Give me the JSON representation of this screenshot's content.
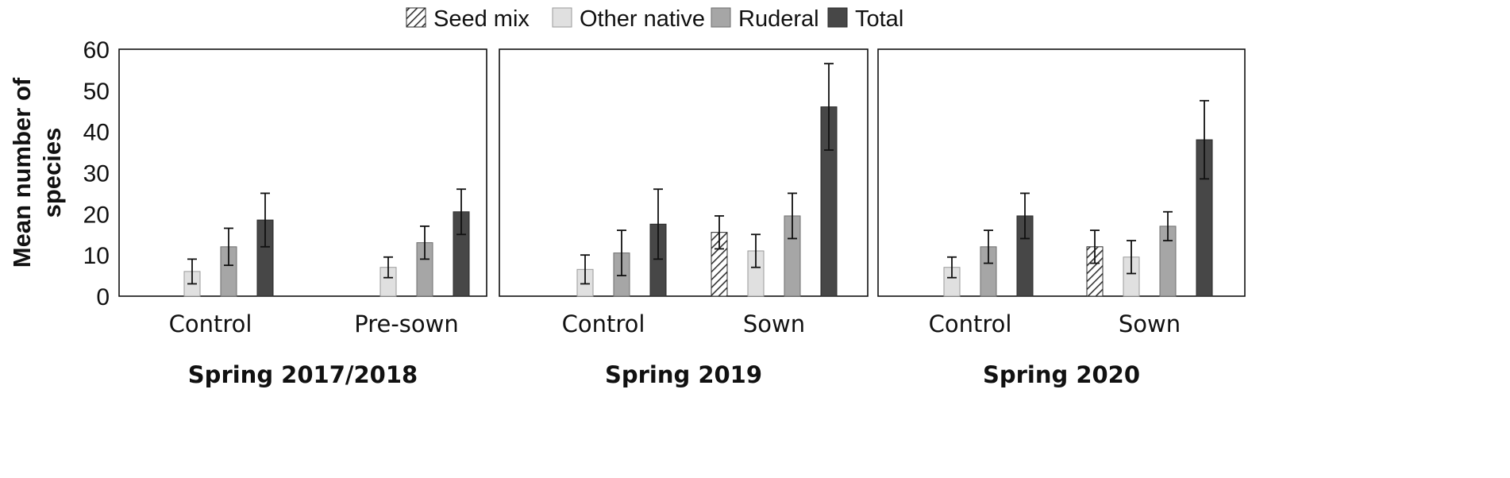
{
  "chart_data": {
    "type": "bar",
    "ylabel": [
      "Mean number of",
      "species"
    ],
    "ylim": [
      0,
      60
    ],
    "yticks": [
      0,
      10,
      20,
      30,
      40,
      50,
      60
    ],
    "legend": {
      "position": "top-center",
      "entries": [
        {
          "key": "seed_mix",
          "label": "Seed mix",
          "color": "#ffffff",
          "pattern": "hatch"
        },
        {
          "key": "other_native",
          "label": "Other native",
          "color": "#e0e0e0"
        },
        {
          "key": "ruderal",
          "label": "Ruderal",
          "color": "#a6a6a6"
        },
        {
          "key": "total",
          "label": "Total",
          "color": "#474747"
        }
      ]
    },
    "panels": [
      {
        "title": "Spring 2017/2018",
        "groups": [
          {
            "category": "Control",
            "bars": [
              {
                "series": "other_native",
                "value": 6,
                "err": 3
              },
              {
                "series": "ruderal",
                "value": 12,
                "err": 4.5
              },
              {
                "series": "total",
                "value": 18.5,
                "err": 6.5
              }
            ]
          },
          {
            "category": "Pre-sown",
            "bars": [
              {
                "series": "other_native",
                "value": 7,
                "err": 2.5
              },
              {
                "series": "ruderal",
                "value": 13,
                "err": 4
              },
              {
                "series": "total",
                "value": 20.5,
                "err": 5.5
              }
            ]
          }
        ]
      },
      {
        "title": "Spring 2019",
        "groups": [
          {
            "category": "Control",
            "bars": [
              {
                "series": "other_native",
                "value": 6.5,
                "err": 3.5
              },
              {
                "series": "ruderal",
                "value": 10.5,
                "err": 5.5
              },
              {
                "series": "total",
                "value": 17.5,
                "err": 8.5
              }
            ]
          },
          {
            "category": "Sown",
            "bars": [
              {
                "series": "seed_mix",
                "value": 15.5,
                "err": 4
              },
              {
                "series": "other_native",
                "value": 11,
                "err": 4
              },
              {
                "series": "ruderal",
                "value": 19.5,
                "err": 5.5
              },
              {
                "series": "total",
                "value": 46,
                "err": 10.5
              }
            ]
          }
        ]
      },
      {
        "title": "Spring 2020",
        "groups": [
          {
            "category": "Control",
            "bars": [
              {
                "series": "other_native",
                "value": 7,
                "err": 2.5
              },
              {
                "series": "ruderal",
                "value": 12,
                "err": 4
              },
              {
                "series": "total",
                "value": 19.5,
                "err": 5.5
              }
            ]
          },
          {
            "category": "Sown",
            "bars": [
              {
                "series": "seed_mix",
                "value": 12,
                "err": 4
              },
              {
                "series": "other_native",
                "value": 9.5,
                "err": 4
              },
              {
                "series": "ruderal",
                "value": 17,
                "err": 3.5
              },
              {
                "series": "total",
                "value": 38,
                "err": 9.5
              }
            ]
          }
        ]
      }
    ]
  }
}
